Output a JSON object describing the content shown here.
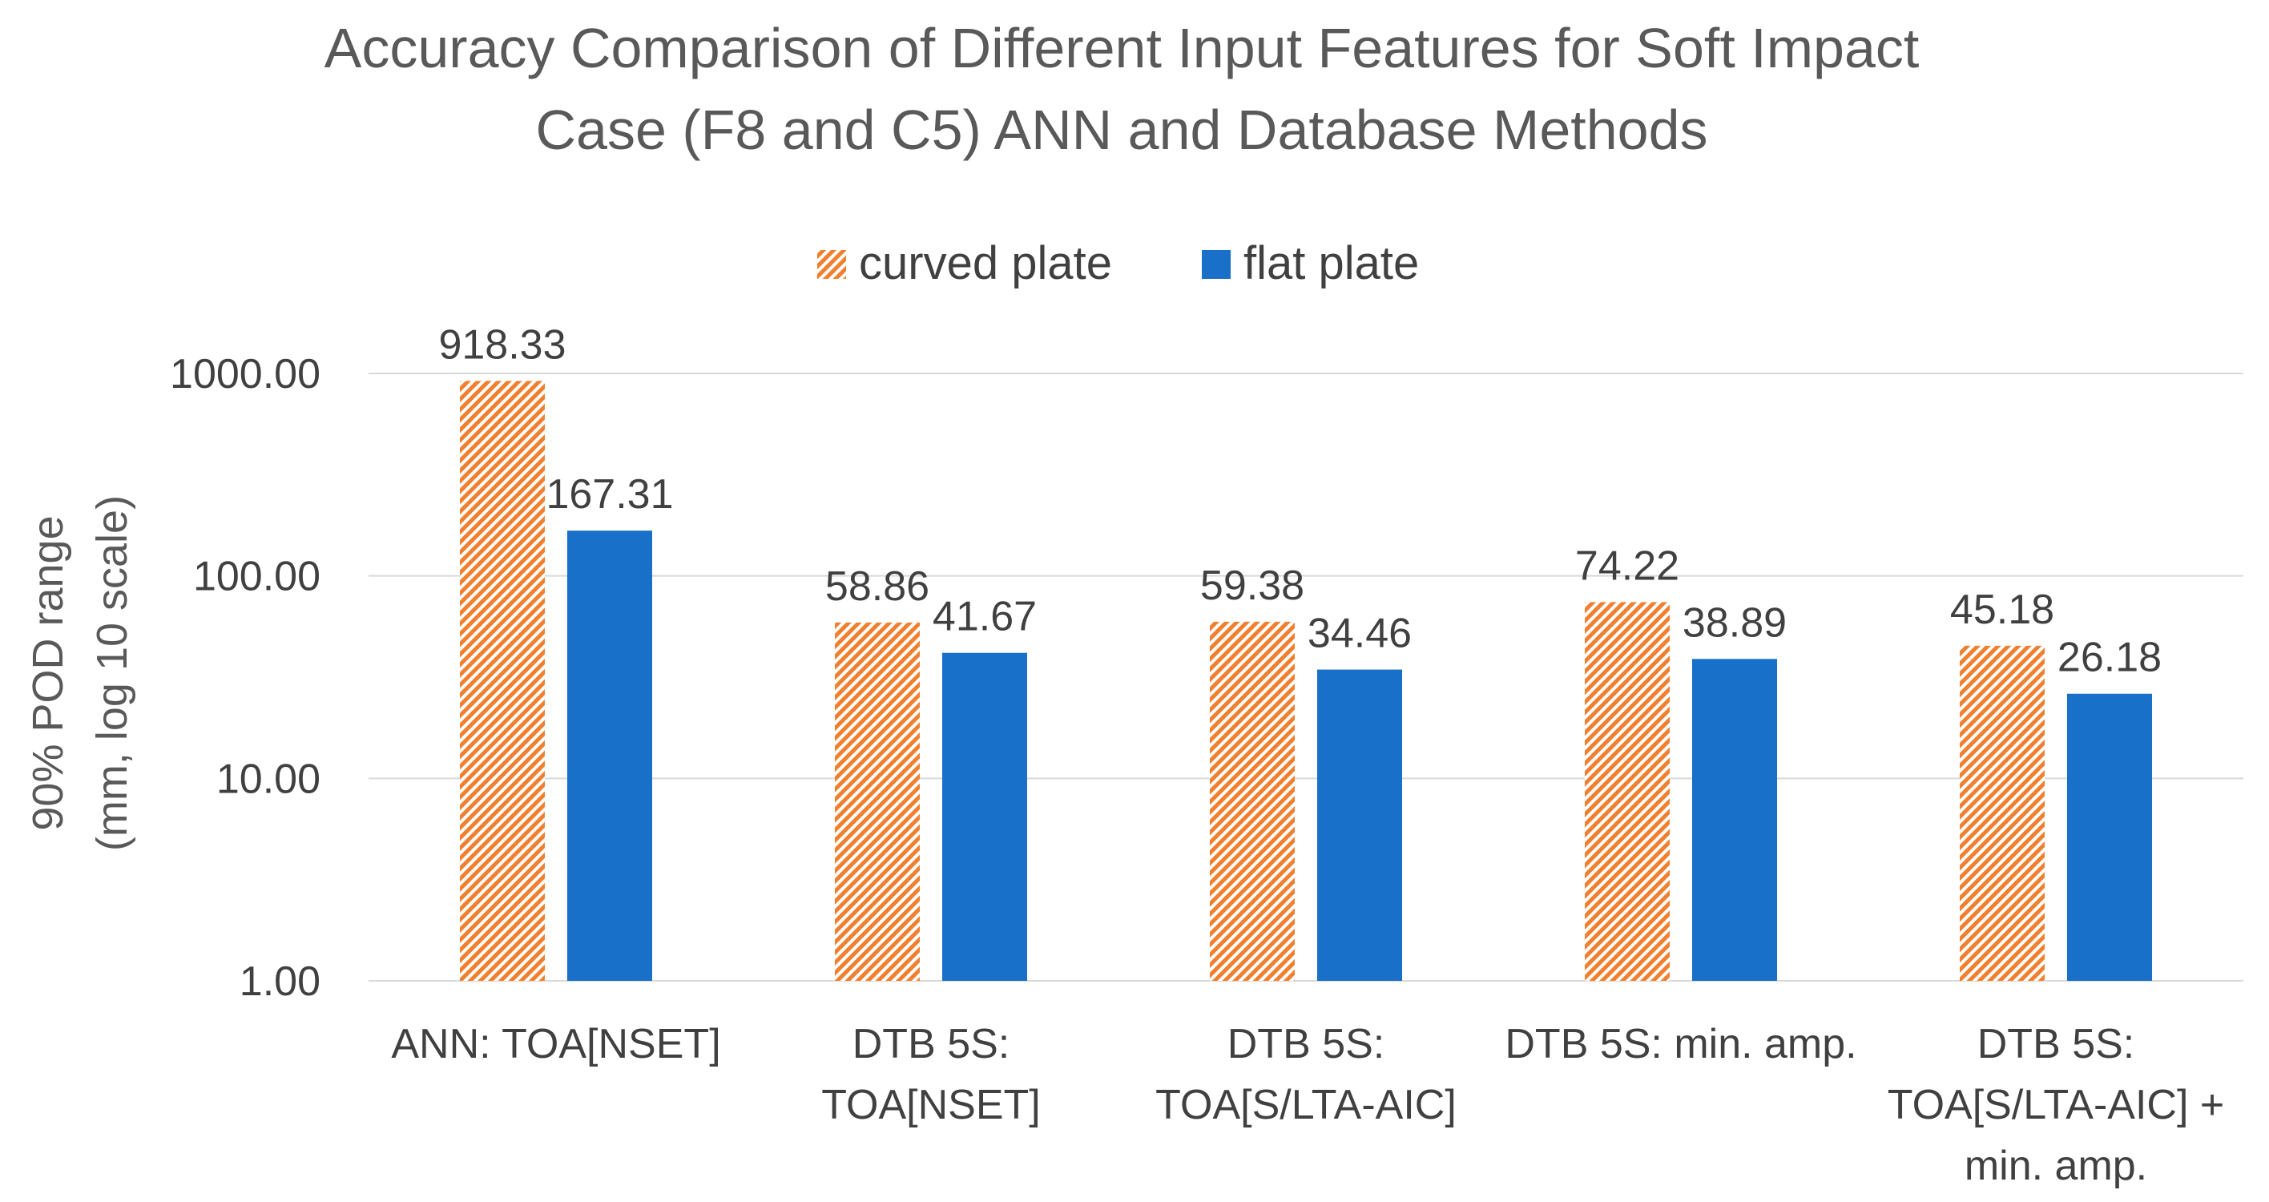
{
  "chart_data": {
    "type": "bar",
    "title": [
      "Accuracy Comparison of Different Input Features for Soft Impact",
      "Case (F8 and C5) ANN and Database Methods"
    ],
    "xlabel": "",
    "ylabel": [
      "90% POD range",
      "(mm, log 10 scale)"
    ],
    "yscale": "log10",
    "ylim": [
      1,
      1000
    ],
    "yticks": [
      1,
      10,
      100,
      1000
    ],
    "ytick_labels": [
      "1.00",
      "10.00",
      "100.00",
      "1000.00"
    ],
    "grid": true,
    "legend_position": "top-center",
    "categories": [
      [
        "ANN: TOA[NSET]"
      ],
      [
        "DTB 5S:",
        "TOA[NSET]"
      ],
      [
        "DTB 5S:",
        "TOA[S/LTA-AIC]"
      ],
      [
        "DTB 5S: min. amp."
      ],
      [
        "DTB 5S:",
        "TOA[S/LTA-AIC] +",
        "min. amp."
      ]
    ],
    "series": [
      {
        "name": "curved plate",
        "color": "#F08030",
        "pattern": "diagonal-hatch",
        "values": [
          918.33,
          58.86,
          59.38,
          74.22,
          45.18
        ],
        "labels": [
          "918.33",
          "58.86",
          "59.38",
          "74.22",
          "45.18"
        ]
      },
      {
        "name": "flat plate",
        "color": "#1870C8",
        "pattern": "solid",
        "values": [
          167.31,
          41.67,
          34.46,
          38.89,
          26.18
        ],
        "labels": [
          "167.31",
          "41.67",
          "34.46",
          "38.89",
          "26.18"
        ]
      }
    ]
  }
}
